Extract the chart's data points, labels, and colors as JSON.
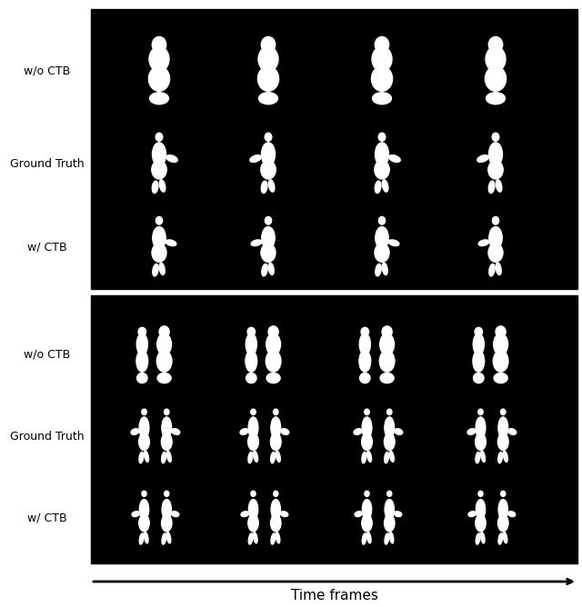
{
  "fig_background": "#ffffff",
  "panel_background": "#000000",
  "row_labels_top": [
    "w/o CTB",
    "Ground Truth",
    "w/ CTB"
  ],
  "row_labels_bottom": [
    "w/o CTB",
    "Ground Truth",
    "w/ CTB"
  ],
  "xlabel": "Time frames",
  "label_fontsize": 9,
  "xlabel_fontsize": 11
}
